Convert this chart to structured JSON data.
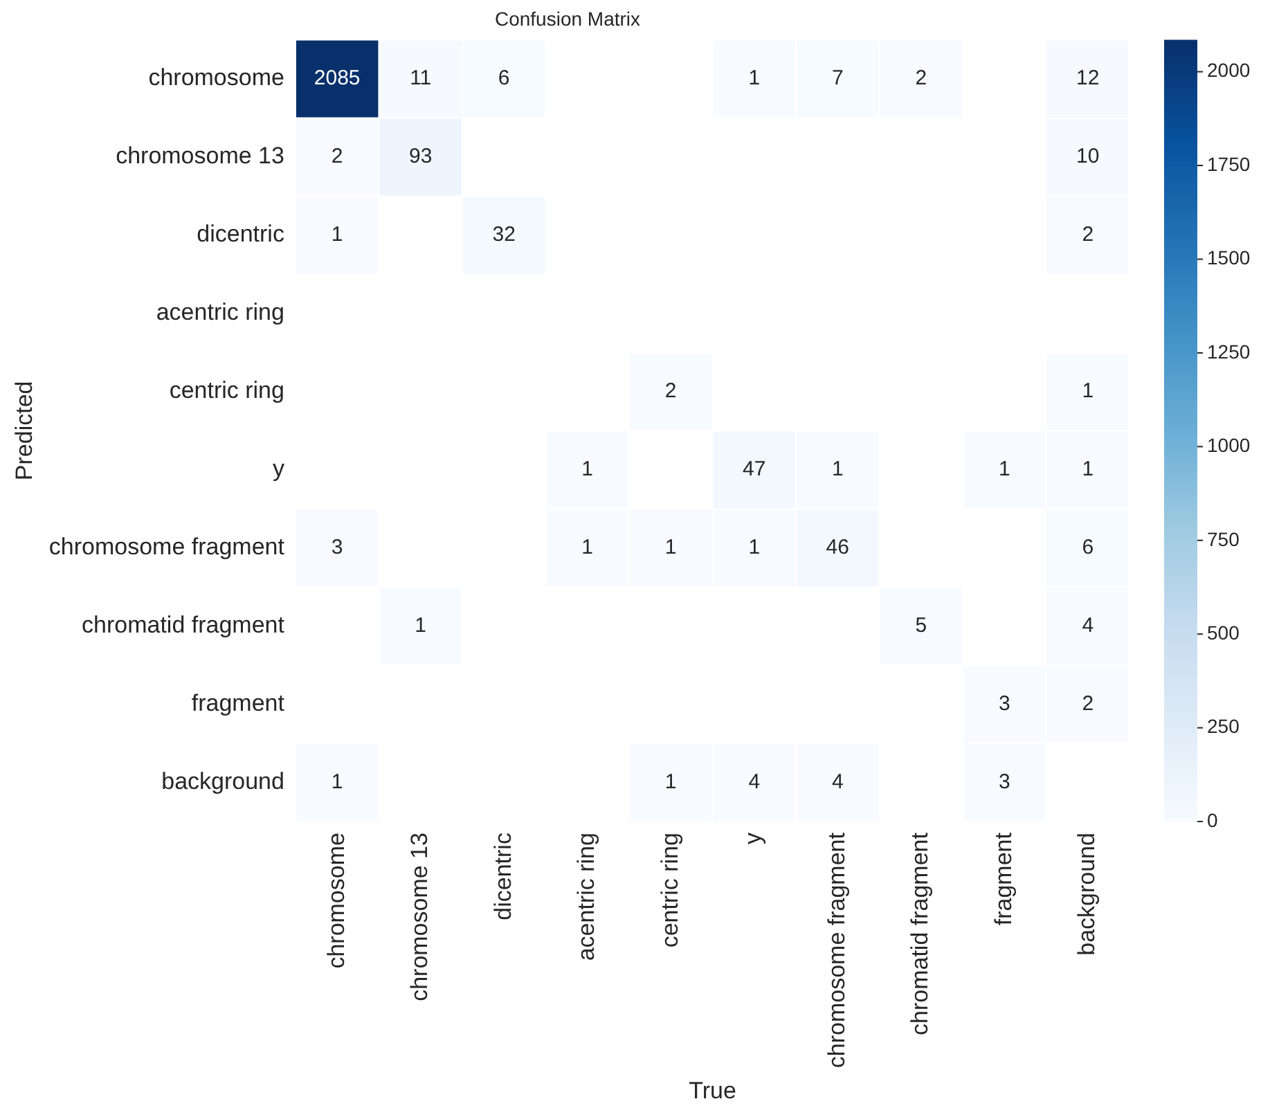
{
  "chart_data": {
    "type": "heatmap",
    "title": "Confusion Matrix",
    "xlabel": "True",
    "ylabel": "Predicted",
    "categories": [
      "chromosome",
      "chromosome 13",
      "dicentric",
      "acentric ring",
      "centric ring",
      "y",
      "chromosome fragment",
      "chromatid fragment",
      "fragment",
      "background"
    ],
    "y_categories": [
      "chromosome",
      "chromosome 13",
      "dicentric",
      "acentric ring",
      "centric ring",
      "y",
      "chromosome fragment",
      "chromatid fragment",
      "fragment",
      "background"
    ],
    "cells": [
      [
        2085,
        11,
        6,
        null,
        null,
        1,
        7,
        2,
        null,
        12
      ],
      [
        2,
        93,
        null,
        null,
        null,
        null,
        null,
        null,
        null,
        10
      ],
      [
        1,
        null,
        32,
        null,
        null,
        null,
        null,
        null,
        null,
        2
      ],
      [
        null,
        null,
        null,
        null,
        null,
        null,
        null,
        null,
        null,
        null
      ],
      [
        null,
        null,
        null,
        null,
        2,
        null,
        null,
        null,
        null,
        1
      ],
      [
        null,
        null,
        null,
        1,
        null,
        47,
        1,
        null,
        1,
        1
      ],
      [
        3,
        null,
        null,
        1,
        1,
        1,
        46,
        null,
        null,
        6
      ],
      [
        null,
        1,
        null,
        null,
        null,
        null,
        null,
        5,
        null,
        4
      ],
      [
        null,
        null,
        null,
        null,
        null,
        null,
        null,
        null,
        3,
        2
      ],
      [
        1,
        null,
        null,
        null,
        1,
        4,
        4,
        null,
        3,
        null
      ]
    ],
    "clim": [
      0,
      2085
    ],
    "cticks": [
      0,
      250,
      500,
      750,
      1000,
      1250,
      1500,
      1750,
      2000
    ],
    "data_labels": true
  }
}
